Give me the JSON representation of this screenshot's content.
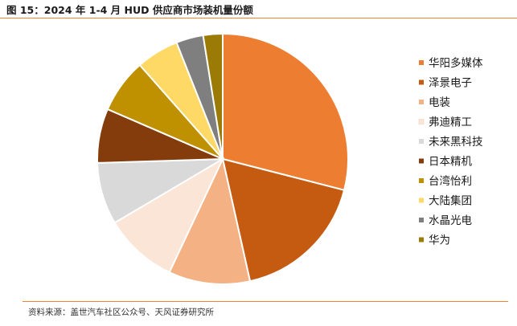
{
  "header": {
    "title": "图 15：2024 年 1-4 月 HUD 供应商市场装机量份额"
  },
  "footer": {
    "source": "资料来源：盖世汽车社区公众号、天风证券研究所"
  },
  "colors": {
    "accent_rule": "#ee8435"
  },
  "chart_data": {
    "type": "pie",
    "title": "",
    "legend_position": "right",
    "slices": [
      {
        "label": "华阳多媒体",
        "value": 29.0,
        "color": "#ed7d31"
      },
      {
        "label": "泽景电子",
        "value": 17.5,
        "color": "#c55a11"
      },
      {
        "label": "电装",
        "value": 10.5,
        "color": "#f4b183"
      },
      {
        "label": "弗迪精工",
        "value": 9.5,
        "color": "#fbe5d6"
      },
      {
        "label": "未来黑科技",
        "value": 8.0,
        "color": "#d9d9d9"
      },
      {
        "label": "日本精机",
        "value": 7.0,
        "color": "#843c0c"
      },
      {
        "label": "台湾怡利",
        "value": 7.0,
        "color": "#bf9000"
      },
      {
        "label": "大陆集团",
        "value": 5.5,
        "color": "#ffd966"
      },
      {
        "label": "水晶光电",
        "value": 3.5,
        "color": "#7f7f7f"
      },
      {
        "label": "华为",
        "value": 2.5,
        "color": "#9c7a06"
      }
    ]
  }
}
